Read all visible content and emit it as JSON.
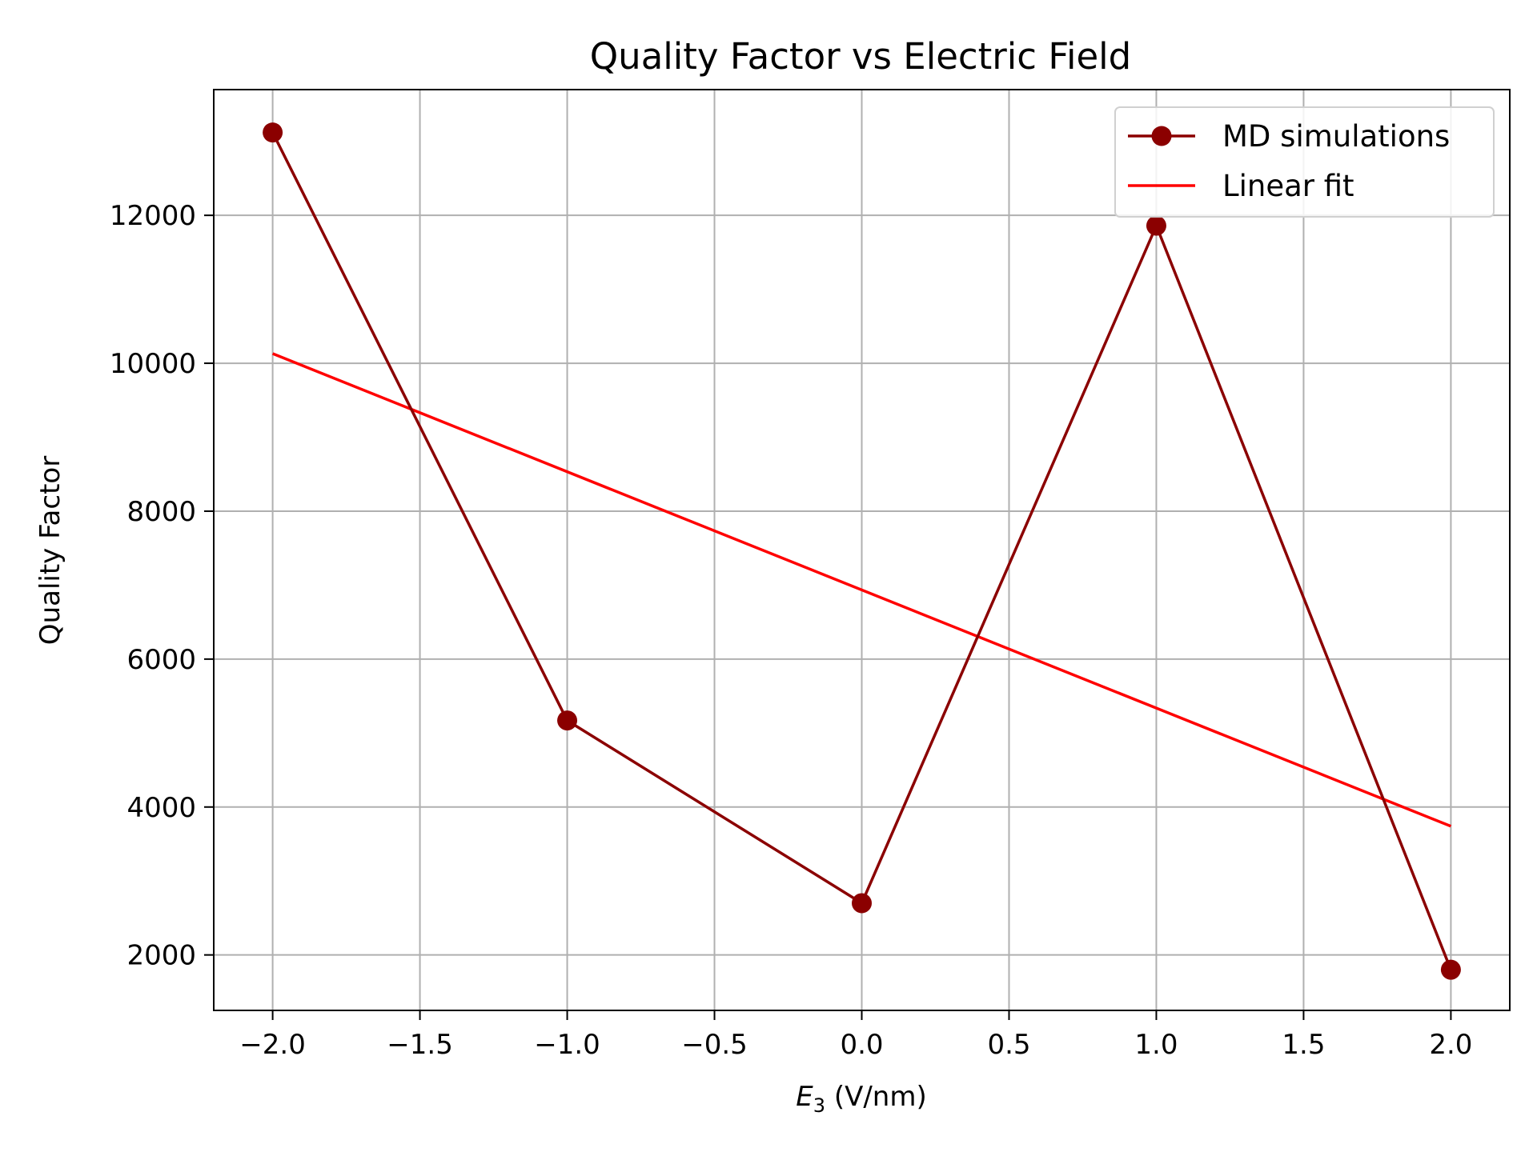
{
  "chart_data": {
    "type": "line",
    "title": "Quality Factor vs Electric Field",
    "xlabel": {
      "main": "E",
      "sub": "3",
      "unit": " (V/nm)"
    },
    "ylabel": "Quality Factor",
    "xlim": [
      -2.2,
      2.2
    ],
    "ylim": [
      1250,
      13700
    ],
    "grid": true,
    "legend_position": "top-right",
    "x_ticks": [
      -2.0,
      -1.5,
      -1.0,
      -0.5,
      0.0,
      0.5,
      1.0,
      1.5,
      2.0
    ],
    "x_tick_labels": [
      "−2.0",
      "−1.5",
      "−1.0",
      "−0.5",
      "0.0",
      "0.5",
      "1.0",
      "1.5",
      "2.0"
    ],
    "y_ticks": [
      2000,
      4000,
      6000,
      8000,
      10000,
      12000
    ],
    "y_tick_labels": [
      "2000",
      "4000",
      "6000",
      "8000",
      "10000",
      "12000"
    ],
    "series": [
      {
        "name": "MD simulations",
        "style": "line-marker",
        "color": "#8b0000",
        "x": [
          -2.0,
          -1.0,
          0.0,
          1.0,
          2.0
        ],
        "y": [
          13120,
          5170,
          2700,
          11860,
          1800
        ]
      },
      {
        "name": "Linear fit",
        "style": "line",
        "color": "#ff0000",
        "x": [
          -2.0,
          2.0
        ],
        "y": [
          10130,
          3740
        ]
      }
    ]
  }
}
